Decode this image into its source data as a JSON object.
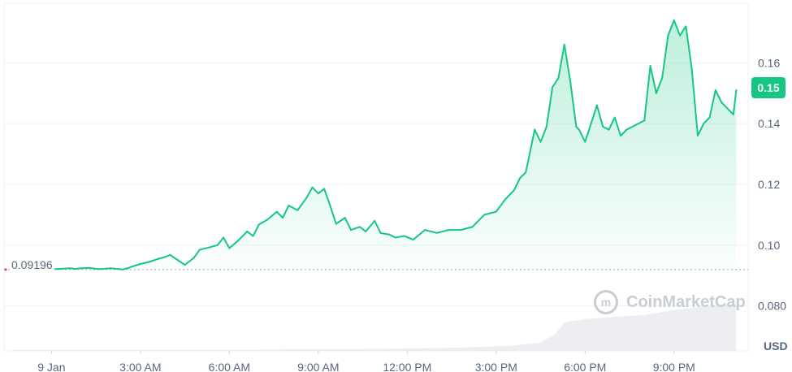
{
  "chart_data": {
    "type": "area",
    "currency": "USD",
    "open_price": "0.09196",
    "current_price_label": "0.15",
    "watermark": "CoinMarketCap",
    "x_ticks": [
      "9 Jan",
      "3:00 AM",
      "6:00 AM",
      "9:00 AM",
      "12:00 PM",
      "3:00 PM",
      "6:00 PM",
      "9:00 PM"
    ],
    "y_ticks": [
      "0.16",
      "0.14",
      "0.12",
      "0.10",
      "0.080"
    ],
    "y_tick_values": [
      0.16,
      0.14,
      0.12,
      0.1,
      0.08
    ],
    "ylim": [
      0.0652,
      0.1796
    ],
    "xlim_hours": [
      -1.6,
      23.5
    ],
    "grid": true,
    "colors": {
      "up": "#16c784",
      "down": "#ea3943",
      "volume": "#e6e8ee",
      "grid": "#eff2f5"
    },
    "series": [
      {
        "x_hours": [
          0.0,
          0.3,
          0.6,
          0.8,
          1.0,
          1.3,
          1.6,
          2.0,
          2.4,
          2.6,
          2.8,
          3.0,
          3.3,
          3.6,
          3.8,
          4.0,
          4.3,
          4.5,
          4.8,
          5.0,
          5.3,
          5.6,
          5.8,
          6.0,
          6.3,
          6.6,
          6.8,
          7.0,
          7.3,
          7.6,
          7.8,
          8.0,
          8.3,
          8.6,
          8.8,
          9.0,
          9.2,
          9.4,
          9.6,
          9.9,
          10.1,
          10.4,
          10.6,
          10.9,
          11.1,
          11.4,
          11.6,
          11.9,
          12.2,
          12.6,
          13.0,
          13.4,
          13.8,
          14.2,
          14.6,
          15.0,
          15.3,
          15.6,
          15.8,
          16.0,
          16.3,
          16.5,
          16.7,
          16.9,
          17.1,
          17.3,
          17.5,
          17.7,
          17.8,
          18.0,
          18.2,
          18.4,
          18.6,
          18.8,
          19.0,
          19.2,
          19.4,
          19.6,
          19.8,
          20.0,
          20.2,
          20.4,
          20.6,
          20.8,
          21.0,
          21.2,
          21.4,
          21.6,
          21.8,
          22.0,
          22.2,
          22.4,
          22.6,
          22.8,
          23.0,
          23.1
        ],
        "values": [
          0.0921,
          0.0922,
          0.0924,
          0.0922,
          0.0924,
          0.0925,
          0.0921,
          0.0924,
          0.092,
          0.0925,
          0.0932,
          0.0938,
          0.0945,
          0.0955,
          0.096,
          0.0968,
          0.0948,
          0.0935,
          0.0958,
          0.0985,
          0.0992,
          0.1,
          0.1025,
          0.099,
          0.1015,
          0.1045,
          0.103,
          0.1068,
          0.1085,
          0.111,
          0.109,
          0.113,
          0.1115,
          0.1155,
          0.119,
          0.117,
          0.1185,
          0.113,
          0.107,
          0.109,
          0.105,
          0.106,
          0.1045,
          0.108,
          0.104,
          0.1035,
          0.1025,
          0.103,
          0.1018,
          0.105,
          0.104,
          0.105,
          0.105,
          0.106,
          0.11,
          0.111,
          0.115,
          0.118,
          0.122,
          0.124,
          0.138,
          0.134,
          0.139,
          0.152,
          0.155,
          0.166,
          0.154,
          0.139,
          0.138,
          0.134,
          0.14,
          0.146,
          0.139,
          0.138,
          0.142,
          0.136,
          0.138,
          0.139,
          0.14,
          0.141,
          0.159,
          0.15,
          0.155,
          0.169,
          0.174,
          0.169,
          0.172,
          0.158,
          0.136,
          0.14,
          0.142,
          0.151,
          0.147,
          0.145,
          0.143,
          0.151
        ]
      }
    ],
    "volume_relative": [
      {
        "x_hours": -1.3,
        "value": 0.02
      },
      {
        "x_hours": 1.0,
        "value": 0.02
      },
      {
        "x_hours": 3.0,
        "value": 0.02
      },
      {
        "x_hours": 6.0,
        "value": 0.02
      },
      {
        "x_hours": 9.0,
        "value": 0.03
      },
      {
        "x_hours": 12.0,
        "value": 0.04
      },
      {
        "x_hours": 14.0,
        "value": 0.06
      },
      {
        "x_hours": 15.5,
        "value": 0.09
      },
      {
        "x_hours": 16.5,
        "value": 0.15
      },
      {
        "x_hours": 17.0,
        "value": 0.3
      },
      {
        "x_hours": 17.3,
        "value": 0.5
      },
      {
        "x_hours": 18.0,
        "value": 0.56
      },
      {
        "x_hours": 19.0,
        "value": 0.6
      },
      {
        "x_hours": 20.0,
        "value": 0.63
      },
      {
        "x_hours": 21.0,
        "value": 0.72
      },
      {
        "x_hours": 22.0,
        "value": 0.78
      },
      {
        "x_hours": 23.0,
        "value": 0.82
      },
      {
        "x_hours": 23.1,
        "value": 0.82
      }
    ]
  }
}
